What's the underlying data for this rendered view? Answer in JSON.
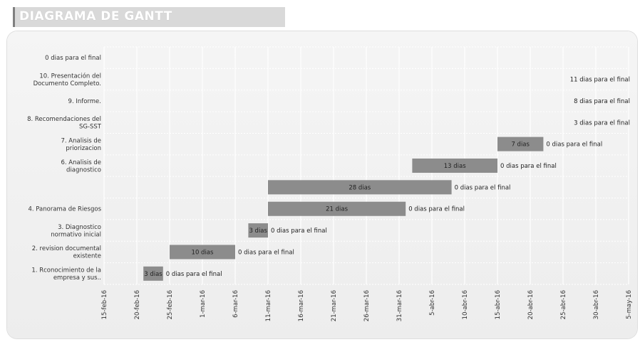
{
  "title": "DIAGRAMA DE GANTT",
  "chart_data": {
    "type": "bar",
    "subtype": "gantt",
    "title": "DIAGRAMA DE GANTT",
    "tasks": [
      {
        "label": "0 dias para el final",
        "start": null,
        "duration": null,
        "bar_label": "",
        "after_label": ""
      },
      {
        "label": "10. Presentación del Documento Completo.",
        "start": null,
        "duration": null,
        "bar_label": "",
        "after_label": "11 dias para el final"
      },
      {
        "label": "9. Informe.",
        "start": null,
        "duration": null,
        "bar_label": "",
        "after_label": "8 dias para el final"
      },
      {
        "label": "8. Recomendaciones del SG-SST",
        "start": null,
        "duration": null,
        "bar_label": "",
        "after_label": "3 dias para el final"
      },
      {
        "label": "7. Analisis de priorizacion",
        "start": "2016-04-15",
        "duration": 7,
        "bar_label": "7 dias",
        "after_label": "0 dias para el final"
      },
      {
        "label": "6. Analisis de diagnostico",
        "start": "2016-04-02",
        "duration": 13,
        "bar_label": "13 dias",
        "after_label": "0 dias para el final"
      },
      {
        "label": "",
        "start": "2016-03-11",
        "duration": 28,
        "bar_label": "28 dias",
        "after_label": "0 dias para el final"
      },
      {
        "label": "4. Panorama de Riesgos",
        "start": "2016-03-11",
        "duration": 21,
        "bar_label": "21 dias",
        "after_label": "0 dias para el final"
      },
      {
        "label": "3. Diagnostico normativo inicial",
        "start": "2016-03-08",
        "duration": 3,
        "bar_label": "3 dias",
        "after_label": "0 dias para el final"
      },
      {
        "label": "2. revision documental existente",
        "start": "2016-02-25",
        "duration": 10,
        "bar_label": "10 dias",
        "after_label": "0 dias para el final"
      },
      {
        "label": "1. Rconocimiento de la empresa y sus..",
        "start": "2016-02-21",
        "duration": 3,
        "bar_label": "3 dias",
        "after_label": "0 dias para el final"
      }
    ],
    "x_ticks": [
      "15-feb-16",
      "20-feb-16",
      "25-feb-16",
      "1-mar-16",
      "6-mar-16",
      "11-mar-16",
      "16-mar-16",
      "21-mar-16",
      "26-mar-16",
      "31-mar-16",
      "5-abr-16",
      "10-abr-16",
      "15-abr-16",
      "20-abr-16",
      "25-abr-16",
      "30-abr-16",
      "5-may-16"
    ],
    "xlim": [
      "2016-02-15",
      "2016-05-05"
    ],
    "grid": true,
    "bar_color": "#8c8c8c"
  }
}
